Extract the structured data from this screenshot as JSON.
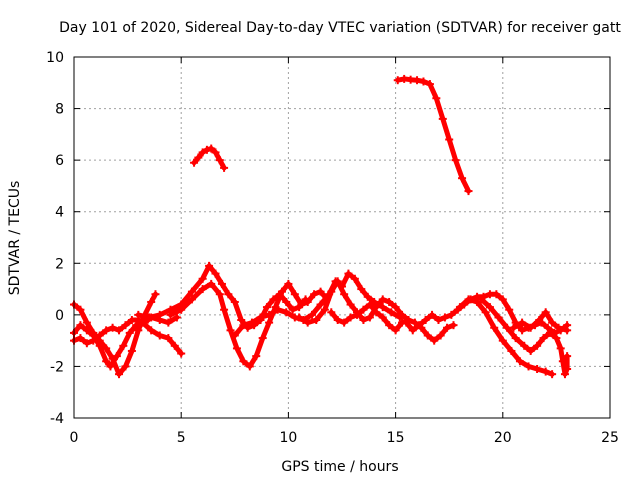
{
  "chart_data": {
    "type": "scatter",
    "title": "Day 101 of 2020, Sidereal Day-to-day VTEC variation (SDTVAR) for receiver gatt",
    "xlabel": "GPS time / hours",
    "ylabel": "SDTVAR / TECUs",
    "xlim": [
      0,
      25
    ],
    "ylim": [
      -4,
      10
    ],
    "xticks": [
      0,
      5,
      10,
      15,
      20,
      25
    ],
    "yticks": [
      -4,
      -2,
      0,
      2,
      4,
      6,
      8,
      10
    ],
    "grid": true,
    "marker": "+",
    "color": "#ff0000",
    "series": [
      {
        "name": "trace-1",
        "points": [
          [
            0.0,
            0.4
          ],
          [
            0.3,
            0.2
          ],
          [
            0.6,
            -0.3
          ],
          [
            0.9,
            -0.7
          ],
          [
            1.2,
            -1.0
          ],
          [
            1.5,
            -1.3
          ],
          [
            1.8,
            -1.7
          ],
          [
            2.1,
            -2.3
          ],
          [
            2.4,
            -2.0
          ],
          [
            2.7,
            -1.4
          ],
          [
            3.0,
            -0.6
          ],
          [
            3.3,
            0.0
          ],
          [
            3.6,
            0.5
          ],
          [
            3.8,
            0.8
          ]
        ]
      },
      {
        "name": "trace-2",
        "points": [
          [
            0.0,
            -0.7
          ],
          [
            0.3,
            -0.4
          ],
          [
            0.6,
            -0.6
          ],
          [
            0.9,
            -0.8
          ],
          [
            1.2,
            -1.2
          ],
          [
            1.5,
            -1.8
          ],
          [
            1.7,
            -2.0
          ],
          [
            2.0,
            -1.6
          ],
          [
            2.3,
            -1.2
          ],
          [
            2.6,
            -0.7
          ],
          [
            2.9,
            -0.4
          ],
          [
            3.2,
            -0.3
          ],
          [
            3.6,
            -0.6
          ],
          [
            4.0,
            -0.8
          ],
          [
            4.4,
            -0.9
          ],
          [
            4.7,
            -1.2
          ],
          [
            5.0,
            -1.5
          ]
        ]
      },
      {
        "name": "trace-3",
        "points": [
          [
            0.0,
            -1.0
          ],
          [
            0.3,
            -0.9
          ],
          [
            0.6,
            -1.1
          ],
          [
            0.9,
            -1.0
          ],
          [
            1.2,
            -0.8
          ],
          [
            1.5,
            -0.6
          ],
          [
            1.8,
            -0.5
          ],
          [
            2.1,
            -0.6
          ],
          [
            2.4,
            -0.4
          ],
          [
            2.7,
            -0.2
          ],
          [
            3.0,
            -0.2
          ],
          [
            3.3,
            -0.3
          ],
          [
            3.6,
            -0.1
          ],
          [
            4.0,
            -0.2
          ],
          [
            4.4,
            -0.3
          ],
          [
            4.8,
            -0.1
          ]
        ]
      },
      {
        "name": "trace-4",
        "points": [
          [
            3.0,
            0.0
          ],
          [
            3.5,
            -0.1
          ],
          [
            4.0,
            0.0
          ],
          [
            4.5,
            0.2
          ],
          [
            5.0,
            0.4
          ],
          [
            5.5,
            0.9
          ],
          [
            6.0,
            1.4
          ],
          [
            6.3,
            1.9
          ],
          [
            6.6,
            1.6
          ],
          [
            6.9,
            1.2
          ],
          [
            7.2,
            0.8
          ],
          [
            7.5,
            0.5
          ],
          [
            7.8,
            -0.2
          ],
          [
            8.1,
            -0.5
          ],
          [
            8.4,
            -0.4
          ],
          [
            8.7,
            -0.2
          ],
          [
            9.0,
            0.3
          ],
          [
            9.3,
            0.6
          ],
          [
            9.6,
            0.8
          ],
          [
            9.9,
            0.5
          ],
          [
            10.2,
            0.2
          ],
          [
            10.5,
            0.3
          ],
          [
            10.8,
            0.6
          ]
        ]
      },
      {
        "name": "trace-5",
        "points": [
          [
            4.5,
            0.0
          ],
          [
            5.0,
            0.2
          ],
          [
            5.5,
            0.6
          ],
          [
            6.0,
            1.0
          ],
          [
            6.4,
            1.2
          ],
          [
            6.8,
            0.8
          ],
          [
            7.0,
            0.2
          ],
          [
            7.3,
            -0.6
          ],
          [
            7.6,
            -1.3
          ],
          [
            7.9,
            -1.8
          ],
          [
            8.2,
            -2.0
          ],
          [
            8.5,
            -1.6
          ],
          [
            8.8,
            -0.9
          ],
          [
            9.1,
            -0.3
          ],
          [
            9.4,
            0.3
          ],
          [
            9.7,
            0.9
          ],
          [
            10.0,
            1.2
          ],
          [
            10.3,
            0.8
          ],
          [
            10.6,
            0.4
          ],
          [
            10.9,
            0.5
          ],
          [
            11.2,
            0.8
          ],
          [
            11.5,
            0.9
          ],
          [
            11.8,
            0.6
          ]
        ]
      },
      {
        "name": "trace-6",
        "points": [
          [
            7.5,
            -0.8
          ],
          [
            7.9,
            -0.4
          ],
          [
            8.3,
            -0.3
          ],
          [
            8.7,
            -0.1
          ],
          [
            9.1,
            0.0
          ],
          [
            9.5,
            0.2
          ],
          [
            9.9,
            0.1
          ],
          [
            10.3,
            -0.1
          ],
          [
            10.7,
            -0.2
          ],
          [
            11.1,
            0.0
          ],
          [
            11.5,
            0.4
          ],
          [
            11.9,
            0.8
          ],
          [
            12.2,
            1.3
          ],
          [
            12.5,
            1.1
          ],
          [
            12.8,
            1.6
          ],
          [
            13.1,
            1.4
          ],
          [
            13.4,
            1.0
          ],
          [
            13.7,
            0.7
          ],
          [
            14.0,
            0.5
          ],
          [
            14.4,
            0.3
          ],
          [
            14.8,
            0.1
          ],
          [
            15.2,
            -0.1
          ]
        ]
      },
      {
        "name": "trace-7",
        "points": [
          [
            10.5,
            -0.1
          ],
          [
            10.9,
            -0.3
          ],
          [
            11.3,
            -0.2
          ],
          [
            11.7,
            0.2
          ],
          [
            12.0,
            0.9
          ],
          [
            12.3,
            1.3
          ],
          [
            12.6,
            0.8
          ],
          [
            12.9,
            0.4
          ],
          [
            13.2,
            0.1
          ],
          [
            13.5,
            -0.2
          ],
          [
            13.8,
            -0.1
          ],
          [
            14.1,
            0.3
          ],
          [
            14.4,
            0.6
          ],
          [
            14.7,
            0.5
          ],
          [
            15.0,
            0.3
          ],
          [
            15.3,
            0.0
          ],
          [
            15.6,
            -0.2
          ]
        ]
      },
      {
        "name": "trace-8",
        "points": [
          [
            12.0,
            0.1
          ],
          [
            12.3,
            -0.2
          ],
          [
            12.6,
            -0.3
          ],
          [
            12.9,
            -0.1
          ],
          [
            13.2,
            0.0
          ],
          [
            13.5,
            0.2
          ],
          [
            13.8,
            0.4
          ],
          [
            14.1,
            0.1
          ],
          [
            14.4,
            -0.1
          ],
          [
            14.7,
            -0.4
          ],
          [
            15.0,
            -0.6
          ],
          [
            15.3,
            -0.3
          ],
          [
            15.6,
            -0.2
          ],
          [
            15.9,
            -0.3
          ],
          [
            16.2,
            -0.5
          ],
          [
            16.5,
            -0.8
          ],
          [
            16.8,
            -1.0
          ],
          [
            17.1,
            -0.8
          ],
          [
            17.4,
            -0.5
          ],
          [
            17.7,
            -0.4
          ]
        ]
      },
      {
        "name": "trace-9",
        "points": [
          [
            15.5,
            -0.3
          ],
          [
            15.8,
            -0.6
          ],
          [
            16.1,
            -0.4
          ],
          [
            16.4,
            -0.2
          ],
          [
            16.7,
            0.0
          ],
          [
            17.0,
            -0.2
          ],
          [
            17.3,
            -0.1
          ],
          [
            17.6,
            0.0
          ],
          [
            17.9,
            0.2
          ],
          [
            18.2,
            0.4
          ],
          [
            18.5,
            0.6
          ],
          [
            18.8,
            0.7
          ],
          [
            19.1,
            0.7
          ],
          [
            19.4,
            0.8
          ],
          [
            19.7,
            0.8
          ],
          [
            20.0,
            0.6
          ],
          [
            20.3,
            0.2
          ],
          [
            20.6,
            -0.3
          ],
          [
            20.9,
            -0.6
          ],
          [
            21.2,
            -0.5
          ],
          [
            21.5,
            -0.4
          ],
          [
            21.8,
            -0.3
          ],
          [
            22.1,
            -0.5
          ],
          [
            22.4,
            -0.7
          ],
          [
            22.7,
            -0.6
          ],
          [
            23.0,
            -0.4
          ]
        ]
      },
      {
        "name": "trace-10",
        "points": [
          [
            18.0,
            0.3
          ],
          [
            18.4,
            0.6
          ],
          [
            18.8,
            0.5
          ],
          [
            19.2,
            0.1
          ],
          [
            19.6,
            -0.5
          ],
          [
            20.0,
            -1.0
          ],
          [
            20.4,
            -1.4
          ],
          [
            20.8,
            -1.8
          ],
          [
            21.2,
            -2.0
          ],
          [
            21.6,
            -2.1
          ],
          [
            22.0,
            -2.2
          ],
          [
            22.3,
            -2.3
          ]
        ]
      },
      {
        "name": "trace-11",
        "points": [
          [
            19.0,
            0.6
          ],
          [
            19.4,
            0.3
          ],
          [
            19.8,
            -0.1
          ],
          [
            20.2,
            -0.5
          ],
          [
            20.6,
            -0.9
          ],
          [
            21.0,
            -1.2
          ],
          [
            21.3,
            -1.4
          ],
          [
            21.6,
            -1.2
          ],
          [
            21.9,
            -0.9
          ],
          [
            22.2,
            -0.7
          ],
          [
            22.5,
            -0.9
          ],
          [
            22.7,
            -1.3
          ],
          [
            22.8,
            -1.8
          ],
          [
            22.9,
            -2.3
          ],
          [
            23.0,
            -2.1
          ],
          [
            23.0,
            -1.6
          ]
        ]
      },
      {
        "name": "trace-12",
        "points": [
          [
            20.5,
            -0.5
          ],
          [
            20.9,
            -0.3
          ],
          [
            21.3,
            -0.5
          ],
          [
            21.7,
            -0.2
          ],
          [
            22.0,
            0.1
          ],
          [
            22.3,
            -0.3
          ],
          [
            22.6,
            -0.5
          ],
          [
            23.0,
            -0.6
          ]
        ]
      },
      {
        "name": "trace-13",
        "points": [
          [
            5.6,
            5.9
          ],
          [
            5.8,
            6.1
          ],
          [
            6.0,
            6.3
          ],
          [
            6.2,
            6.4
          ],
          [
            6.4,
            6.45
          ],
          [
            6.6,
            6.3
          ],
          [
            6.8,
            6.0
          ],
          [
            7.0,
            5.7
          ]
        ]
      },
      {
        "name": "trace-14",
        "points": [
          [
            15.1,
            9.1
          ],
          [
            15.4,
            9.15
          ],
          [
            15.7,
            9.12
          ],
          [
            16.0,
            9.1
          ],
          [
            16.3,
            9.05
          ],
          [
            16.6,
            8.95
          ],
          [
            16.9,
            8.4
          ],
          [
            17.2,
            7.6
          ],
          [
            17.5,
            6.8
          ],
          [
            17.8,
            6.0
          ],
          [
            18.1,
            5.3
          ],
          [
            18.4,
            4.8
          ]
        ]
      }
    ]
  }
}
